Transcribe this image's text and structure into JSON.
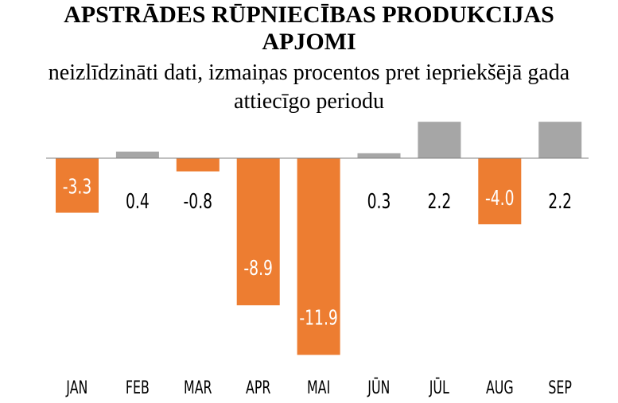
{
  "chart_data": {
    "type": "bar",
    "title": "APSTRĀDES RŪPNIECĪBAS PRODUKCIJAS APJOMI",
    "subtitle": "neizlīdzināti dati, izmaiņas procentos pret iepriekšējā gada attiecīgo periodu",
    "categories": [
      "JAN",
      "FEB",
      "MAR",
      "APR",
      "MAI",
      "JŪN",
      "JŪL",
      "AUG",
      "SEP"
    ],
    "values": [
      -3.3,
      0.4,
      -0.8,
      -8.9,
      -11.9,
      0.3,
      2.2,
      -4.0,
      2.2
    ],
    "labels": [
      "-3.3",
      "0.4",
      "-0.8",
      "-8.9",
      "-11.9",
      "0.3",
      "2.2",
      "-4.0",
      "2.2"
    ],
    "colors": {
      "negative": "#ED7D31",
      "positive": "#A6A6A6",
      "axis": "#808080"
    },
    "grid": false,
    "legend": "none"
  }
}
